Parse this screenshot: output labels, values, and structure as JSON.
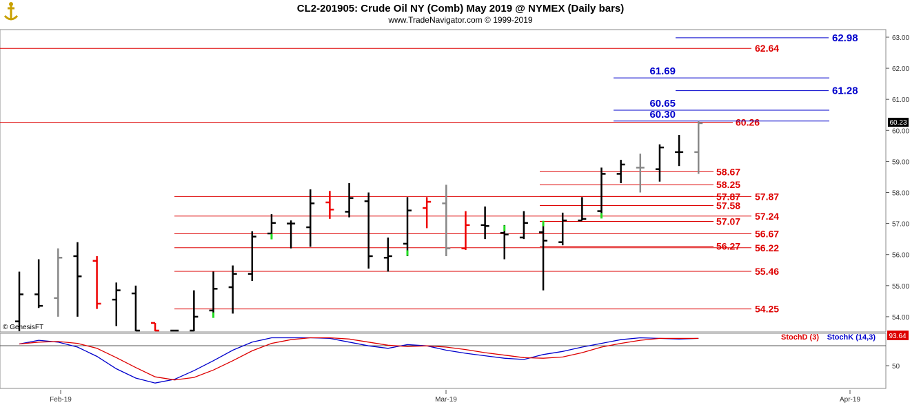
{
  "header": {
    "title": "CL2-201905:  Crude Oil NY (Comb) May 2019 @ NYMEX  (Daily bars)",
    "subtitle": "www.TradeNavigator.com © 1999-2019",
    "logo_icon": "anchor-icon",
    "font_credit": "© GenesisFT"
  },
  "colors": {
    "up_bar": "#000000",
    "down_bar": "#ee0000",
    "neutral_bar": "#888888",
    "pivot_high": "#22dd22",
    "red_level": "#dd0000",
    "blue_level": "#0000cc",
    "stoch_k": "#0000cc",
    "stoch_d": "#dd0000"
  },
  "chart_data": [
    {
      "type": "ohlc",
      "title": "CL2-201905:  Crude Oil NY (Comb) May 2019 @ NYMEX  (Daily bars)",
      "y_ticks": [
        "54.00",
        "55.00",
        "56.00",
        "57.00",
        "58.00",
        "59.00",
        "60.00",
        "61.00",
        "62.00",
        "63.00"
      ],
      "ylim": [
        53.5,
        63.2
      ],
      "x_labels": [
        "Feb-19",
        "Mar-19",
        "Apr-19"
      ],
      "last_price": "60.23",
      "bars": [
        {
          "o": 53.85,
          "h": 55.45,
          "l": 53.5,
          "c": 54.72,
          "color": "up"
        },
        {
          "o": 54.72,
          "h": 55.85,
          "l": 54.28,
          "c": 54.35,
          "color": "up"
        },
        {
          "o": 54.6,
          "h": 56.2,
          "l": 54.0,
          "c": 55.9,
          "color": "neutral"
        },
        {
          "o": 55.95,
          "h": 56.4,
          "l": 54.0,
          "c": 55.3,
          "color": "up"
        },
        {
          "o": 55.8,
          "h": 55.95,
          "l": 54.25,
          "c": 54.42,
          "color": "down"
        },
        {
          "o": 54.55,
          "h": 55.1,
          "l": 53.7,
          "c": 54.85,
          "color": "up"
        },
        {
          "o": 54.75,
          "h": 55.0,
          "l": 53.5,
          "c": 53.5,
          "color": "up"
        },
        {
          "o": 53.8,
          "h": 53.8,
          "l": 53.5,
          "c": 53.5,
          "color": "down"
        },
        {
          "o": 53.5,
          "h": 53.55,
          "l": 53.5,
          "c": 53.52,
          "color": "up"
        },
        {
          "o": 53.55,
          "h": 54.85,
          "l": 53.5,
          "c": 54.0,
          "color": "up"
        },
        {
          "o": 54.2,
          "h": 55.45,
          "l": 54.0,
          "c": 54.9,
          "color": "up",
          "mark": 54.05
        },
        {
          "o": 54.95,
          "h": 55.65,
          "l": 54.1,
          "c": 55.38,
          "color": "up"
        },
        {
          "o": 55.38,
          "h": 56.75,
          "l": 55.15,
          "c": 56.58,
          "color": "up"
        },
        {
          "o": 56.68,
          "h": 57.3,
          "l": 56.55,
          "c": 57.02,
          "color": "up",
          "mark": 56.58
        },
        {
          "o": 57.0,
          "h": 57.1,
          "l": 56.2,
          "c": 57.0,
          "color": "up"
        },
        {
          "o": 56.88,
          "h": 58.1,
          "l": 56.25,
          "c": 57.65,
          "color": "up"
        },
        {
          "o": 57.68,
          "h": 58.05,
          "l": 57.15,
          "c": 57.45,
          "color": "down"
        },
        {
          "o": 57.38,
          "h": 58.3,
          "l": 57.2,
          "c": 57.82,
          "color": "up"
        },
        {
          "o": 57.72,
          "h": 58.0,
          "l": 55.55,
          "c": 55.95,
          "color": "up"
        },
        {
          "o": 55.9,
          "h": 56.55,
          "l": 55.45,
          "c": 55.95,
          "color": "up"
        },
        {
          "o": 56.35,
          "h": 57.85,
          "l": 55.95,
          "c": 57.42,
          "color": "up",
          "mark": 56.05
        },
        {
          "o": 57.5,
          "h": 57.85,
          "l": 56.85,
          "c": 57.7,
          "color": "down"
        },
        {
          "o": 57.65,
          "h": 58.25,
          "l": 55.95,
          "c": 56.2,
          "color": "neutral"
        },
        {
          "o": 56.2,
          "h": 57.4,
          "l": 56.15,
          "c": 56.95,
          "color": "down"
        },
        {
          "o": 56.95,
          "h": 57.55,
          "l": 56.5,
          "c": 56.92,
          "color": "up"
        },
        {
          "o": 56.7,
          "h": 56.95,
          "l": 55.85,
          "c": 56.65,
          "color": "up",
          "mark": 56.85
        },
        {
          "o": 56.55,
          "h": 57.4,
          "l": 56.5,
          "c": 57.02,
          "color": "up"
        },
        {
          "o": 56.72,
          "h": 57.0,
          "l": 54.85,
          "c": 56.45,
          "color": "up",
          "mark": 57.0
        },
        {
          "o": 56.4,
          "h": 57.35,
          "l": 56.3,
          "c": 57.1,
          "color": "up"
        },
        {
          "o": 57.1,
          "h": 57.85,
          "l": 57.1,
          "c": 57.15,
          "color": "up"
        },
        {
          "o": 57.4,
          "h": 58.8,
          "l": 57.25,
          "c": 58.6,
          "color": "up",
          "mark": 57.25
        },
        {
          "o": 58.6,
          "h": 59.05,
          "l": 58.3,
          "c": 58.9,
          "color": "up"
        },
        {
          "o": 58.8,
          "h": 59.25,
          "l": 58.0,
          "c": 58.8,
          "color": "neutral"
        },
        {
          "o": 58.75,
          "h": 59.55,
          "l": 58.35,
          "c": 59.45,
          "color": "up"
        },
        {
          "o": 59.3,
          "h": 59.85,
          "l": 58.85,
          "c": 59.3,
          "color": "up"
        },
        {
          "o": 59.3,
          "h": 60.3,
          "l": 58.6,
          "c": 60.23,
          "color": "neutral"
        }
      ],
      "red_levels": [
        {
          "price": 62.64,
          "label": "62.64"
        },
        {
          "price": 60.26,
          "label": "60.26"
        },
        {
          "price": 58.67,
          "label": "58.67"
        },
        {
          "price": 58.25,
          "label": "58.25"
        },
        {
          "price": 57.87,
          "label": "57.87"
        },
        {
          "price": 57.87,
          "label": "57.87"
        },
        {
          "price": 57.58,
          "label": "57.58"
        },
        {
          "price": 57.24,
          "label": "57.24"
        },
        {
          "price": 57.07,
          "label": "57.07"
        },
        {
          "price": 56.67,
          "label": "56.67"
        },
        {
          "price": 56.27,
          "label": "56.27"
        },
        {
          "price": 56.22,
          "label": "56.22"
        },
        {
          "price": 55.46,
          "label": "55.46"
        },
        {
          "price": 54.25,
          "label": "54.25"
        }
      ],
      "blue_levels": [
        {
          "price": 62.98,
          "label": "62.98"
        },
        {
          "price": 61.69,
          "label": "61.69"
        },
        {
          "price": 61.28,
          "label": "61.28"
        },
        {
          "price": 60.65,
          "label": "60.65"
        },
        {
          "price": 60.3,
          "label": "60.30"
        }
      ]
    },
    {
      "type": "line",
      "y_ticks": [
        "50"
      ],
      "ylim": [
        0,
        100
      ],
      "last_value": "93.64",
      "series": [
        {
          "name": "StochK (14,3)",
          "values": [
            85,
            91,
            88,
            80,
            65,
            45,
            30,
            22,
            28,
            42,
            58,
            75,
            88,
            95,
            95,
            95,
            94,
            88,
            82,
            78,
            84,
            82,
            75,
            70,
            66,
            62,
            60,
            68,
            73,
            80,
            86,
            92,
            95,
            94,
            93,
            94
          ]
        },
        {
          "name": "StochD (3)",
          "values": [
            85,
            88,
            89,
            86,
            78,
            63,
            47,
            32,
            27,
            31,
            43,
            58,
            74,
            86,
            92,
            95,
            95,
            93,
            88,
            83,
            81,
            82,
            80,
            76,
            71,
            67,
            63,
            62,
            64,
            71,
            80,
            86,
            91,
            94,
            94,
            94
          ]
        }
      ]
    }
  ]
}
